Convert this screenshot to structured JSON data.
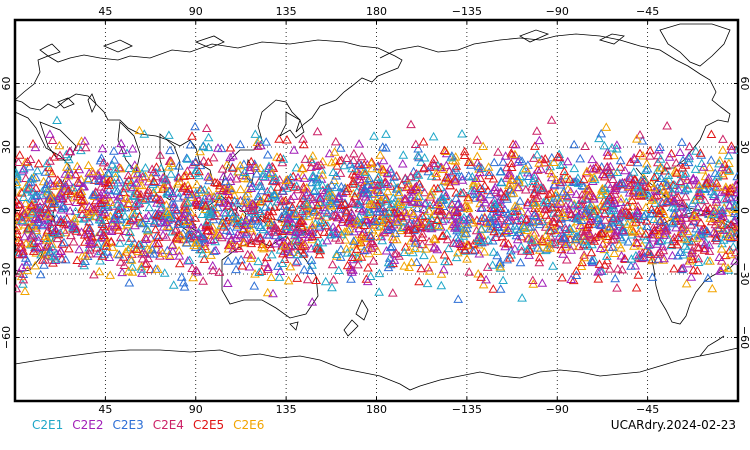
{
  "map": {
    "projection": "cylindrical-equidistant",
    "center_longitude": 180,
    "lon_range": [
      0,
      360
    ],
    "lat_range": [
      -90,
      90
    ],
    "grid": "dotted",
    "top_lon_labels": [
      "45",
      "90",
      "135",
      "180",
      "−135",
      "−90",
      "−45"
    ],
    "bottom_lon_labels": [
      "45",
      "90",
      "135",
      "180",
      "−135",
      "−90",
      "−45"
    ],
    "left_lat_labels": [
      "60",
      "30",
      "0",
      "−30",
      "−60"
    ],
    "right_lat_labels": [
      "60",
      "30",
      "0",
      "−30",
      "−60"
    ],
    "lat_band_covered": [
      -45,
      45
    ],
    "marker_shape": "triangle-outline"
  },
  "series": [
    {
      "name": "C2E1",
      "color": "#1fa7c8"
    },
    {
      "name": "C2E2",
      "color": "#a21fb8"
    },
    {
      "name": "C2E3",
      "color": "#2d6fd6"
    },
    {
      "name": "C2E4",
      "color": "#cc2166"
    },
    {
      "name": "C2E5",
      "color": "#e01414"
    },
    {
      "name": "C2E6",
      "color": "#f2a400"
    }
  ],
  "legend_labels": [
    "C2E1",
    "C2E2",
    "C2E3",
    "C2E4",
    "C2E5",
    "C2E6"
  ],
  "stamp": "UCARdry.2024-02-23",
  "colors": {
    "frame": "#000000",
    "coastline": "#000000",
    "grid": "#000000",
    "background": "#ffffff"
  }
}
